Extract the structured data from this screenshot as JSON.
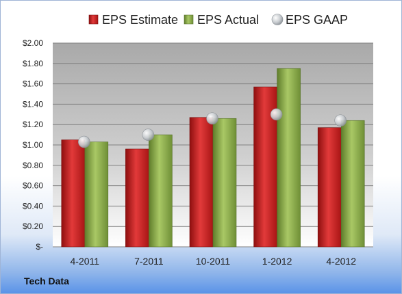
{
  "chart_data": {
    "type": "bar",
    "categories": [
      "4-2011",
      "7-2011",
      "10-2011",
      "1-2012",
      "4-2012"
    ],
    "series": [
      {
        "name": "EPS Estimate",
        "kind": "bar",
        "color": "#cc1f1f",
        "values": [
          1.05,
          0.96,
          1.27,
          1.57,
          1.17
        ]
      },
      {
        "name": "EPS Actual",
        "kind": "bar",
        "color": "#8db04a",
        "values": [
          1.03,
          1.1,
          1.26,
          1.75,
          1.24
        ]
      },
      {
        "name": "EPS GAAP",
        "kind": "scatter",
        "color": "#c4c8cc",
        "values": [
          1.03,
          1.1,
          1.26,
          1.3,
          1.24
        ]
      }
    ],
    "yticks": [
      "$-",
      "$0.20",
      "$0.40",
      "$0.60",
      "$0.80",
      "$1.00",
      "$1.20",
      "$1.40",
      "$1.60",
      "$1.80",
      "$2.00"
    ],
    "ylim": [
      0,
      2.0
    ],
    "grid": true,
    "legend_position": "top"
  },
  "footer": {
    "brand": "Tech Data"
  }
}
